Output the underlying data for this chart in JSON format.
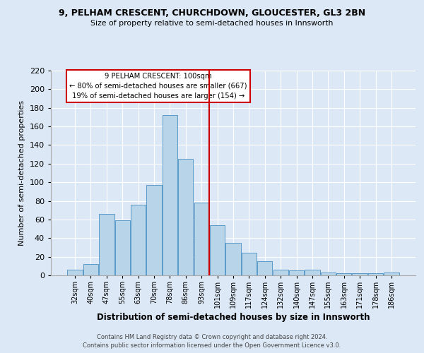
{
  "title1": "9, PELHAM CRESCENT, CHURCHDOWN, GLOUCESTER, GL3 2BN",
  "title2": "Size of property relative to semi-detached houses in Innsworth",
  "xlabel": "Distribution of semi-detached houses by size in Innsworth",
  "ylabel": "Number of semi-detached properties",
  "categories": [
    "32sqm",
    "40sqm",
    "47sqm",
    "55sqm",
    "63sqm",
    "70sqm",
    "78sqm",
    "86sqm",
    "93sqm",
    "101sqm",
    "109sqm",
    "117sqm",
    "124sqm",
    "132sqm",
    "140sqm",
    "147sqm",
    "155sqm",
    "163sqm",
    "171sqm",
    "178sqm",
    "186sqm"
  ],
  "values": [
    6,
    12,
    66,
    59,
    76,
    97,
    172,
    125,
    78,
    54,
    35,
    24,
    15,
    6,
    5,
    6,
    3,
    2,
    2,
    2,
    3
  ],
  "bar_color": "#b8d4e8",
  "bar_edge_color": "#5a9ac8",
  "vline_x_index": 9,
  "vline_color": "#cc0000",
  "annotation_title": "9 PELHAM CRESCENT: 100sqm",
  "annotation_line1": "← 80% of semi-detached houses are smaller (667)",
  "annotation_line2": "19% of semi-detached houses are larger (154) →",
  "annotation_box_color": "#ffffff",
  "annotation_box_edge": "#cc0000",
  "bg_color": "#dce8f5",
  "plot_bg_color": "#dce8f5",
  "ylim": [
    0,
    220
  ],
  "yticks": [
    0,
    20,
    40,
    60,
    80,
    100,
    120,
    140,
    160,
    180,
    200,
    220
  ],
  "footer1": "Contains HM Land Registry data © Crown copyright and database right 2024.",
  "footer2": "Contains public sector information licensed under the Open Government Licence v3.0."
}
